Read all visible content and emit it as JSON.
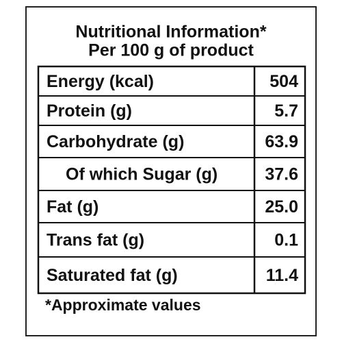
{
  "header": {
    "title": "Nutritional  Information*",
    "subtitle": "Per 100 g of product"
  },
  "table": {
    "rows": [
      [
        "Energy (kcal)",
        "504"
      ],
      [
        "Protein (g)",
        "5.7"
      ],
      [
        "Carbohydrate (g)",
        "63.9"
      ],
      [
        "Of which Sugar (g)",
        "37.6"
      ],
      [
        "Fat (g)",
        "25.0"
      ],
      [
        "Trans fat (g)",
        "0.1"
      ],
      [
        "Saturated fat (g)",
        "11.4"
      ]
    ]
  },
  "footnote": "*Approximate values"
}
